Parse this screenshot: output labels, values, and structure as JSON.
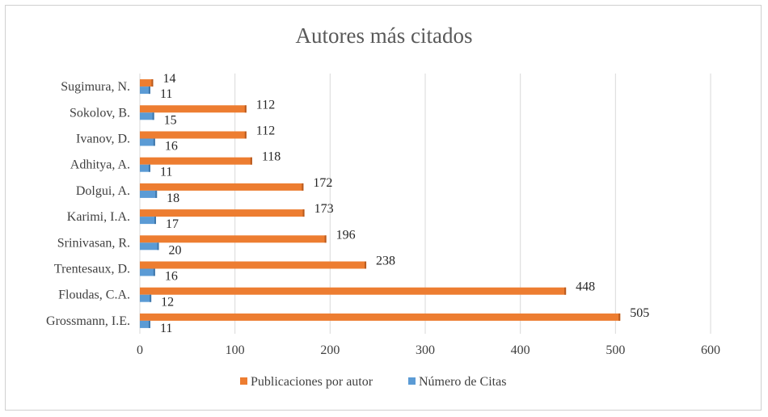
{
  "chart_data": {
    "type": "bar",
    "orientation": "horizontal",
    "title": "Autores más citados",
    "categories": [
      "Grossmann, I.E.",
      "Floudas, C.A.",
      "Trentesaux, D.",
      "Srinivasan, R.",
      "Karimi, I.A.",
      "Dolgui, A.",
      "Adhitya, A.",
      "Ivanov, D.",
      "Sokolov, B.",
      "Sugimura, N."
    ],
    "series": [
      {
        "name": "Publicaciones por autor",
        "values": [
          505,
          448,
          238,
          196,
          173,
          172,
          118,
          112,
          112,
          14
        ],
        "color": "#ED7D31"
      },
      {
        "name": "Número de Citas",
        "values": [
          11,
          12,
          16,
          20,
          17,
          18,
          11,
          16,
          15,
          11
        ],
        "color": "#5B9BD5"
      }
    ],
    "xlim": [
      0,
      600
    ],
    "xticks": [
      0,
      100,
      200,
      300,
      400,
      500,
      600
    ],
    "grid": true,
    "legend_position": "bottom"
  }
}
